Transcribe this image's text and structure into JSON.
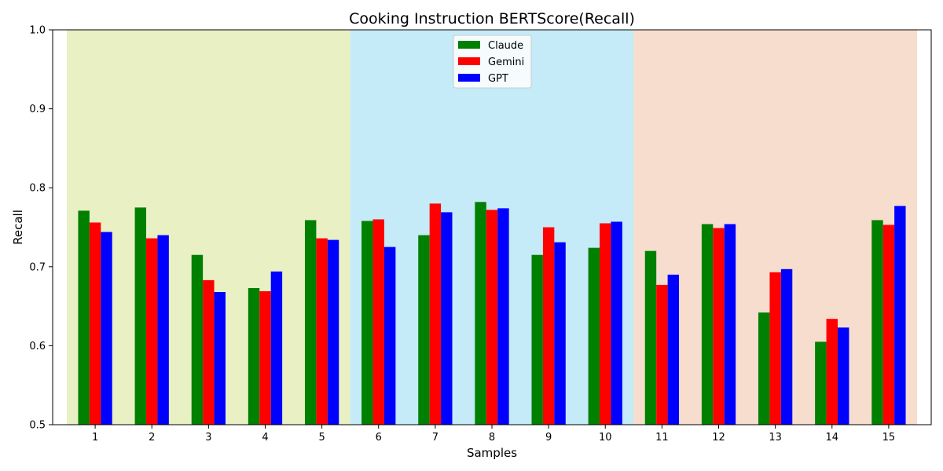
{
  "chart_data": {
    "type": "bar",
    "title": "Cooking Instruction BERTScore(Recall)",
    "xlabel": "Samples",
    "ylabel": "Recall",
    "ylim": [
      0.5,
      1.0
    ],
    "yticks": [
      "0.5",
      "0.6",
      "0.7",
      "0.8",
      "0.9",
      "1.0"
    ],
    "categories": [
      "1",
      "2",
      "3",
      "4",
      "5",
      "6",
      "7",
      "8",
      "9",
      "10",
      "11",
      "12",
      "13",
      "14",
      "15"
    ],
    "series": [
      {
        "name": "Claude",
        "color": "#008000",
        "values": [
          0.771,
          0.775,
          0.715,
          0.673,
          0.759,
          0.758,
          0.74,
          0.782,
          0.715,
          0.724,
          0.72,
          0.754,
          0.642,
          0.605,
          0.759
        ]
      },
      {
        "name": "Gemini",
        "color": "#ff0000",
        "values": [
          0.756,
          0.736,
          0.683,
          0.669,
          0.736,
          0.76,
          0.78,
          0.772,
          0.75,
          0.755,
          0.677,
          0.749,
          0.693,
          0.634,
          0.753
        ]
      },
      {
        "name": "GPT",
        "color": "#0000ff",
        "values": [
          0.744,
          0.74,
          0.668,
          0.694,
          0.734,
          0.725,
          0.769,
          0.774,
          0.731,
          0.757,
          0.69,
          0.754,
          0.697,
          0.623,
          0.777
        ]
      }
    ],
    "background_regions": [
      {
        "from": "1",
        "to": "5",
        "color": "#e8f0c4"
      },
      {
        "from": "6",
        "to": "10",
        "color": "#c4ebf7"
      },
      {
        "from": "11",
        "to": "15",
        "color": "#f6ddcd"
      }
    ],
    "legend": "upper center",
    "grid": false
  }
}
